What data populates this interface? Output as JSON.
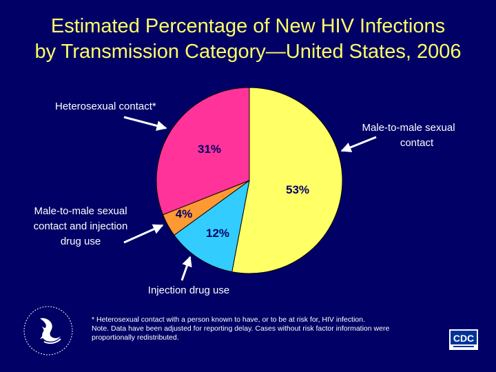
{
  "title": {
    "line1": "Estimated Percentage of New HIV Infections",
    "line2": "by Transmission Category—United States, 2006"
  },
  "chart_data": {
    "type": "pie",
    "slices": [
      {
        "label": "Male-to-male sexual contact",
        "value": 53,
        "display": "53%",
        "color": "#ffff66"
      },
      {
        "label": "Injection drug use",
        "value": 12,
        "display": "12%",
        "color": "#33ccff"
      },
      {
        "label": "Male-to-male sexual contact and injection drug use",
        "value": 4,
        "display": "4%",
        "color": "#ff9933"
      },
      {
        "label": "Heterosexual contact*",
        "value": 31,
        "display": "31%",
        "color": "#ff3399"
      }
    ]
  },
  "labels": {
    "heterosexual": "Heterosexual contact*",
    "msm_line1": "Male-to-male sexual",
    "msm_line2": "contact",
    "msm_idu_line1": "Male-to-male sexual",
    "msm_idu_line2": "contact and injection",
    "msm_idu_line3": "drug use",
    "idu": "Injection drug use"
  },
  "footnote": {
    "line1": "* Heterosexual contact with a person known to have, or to be at risk for, HIV infection.",
    "line2": "Note. Data have been adjusted for reporting delay. Cases without risk factor information were",
    "line3": "proportionally redistributed."
  },
  "logos": {
    "hhs": "hhs-eagle-seal",
    "cdc": "CDC"
  }
}
